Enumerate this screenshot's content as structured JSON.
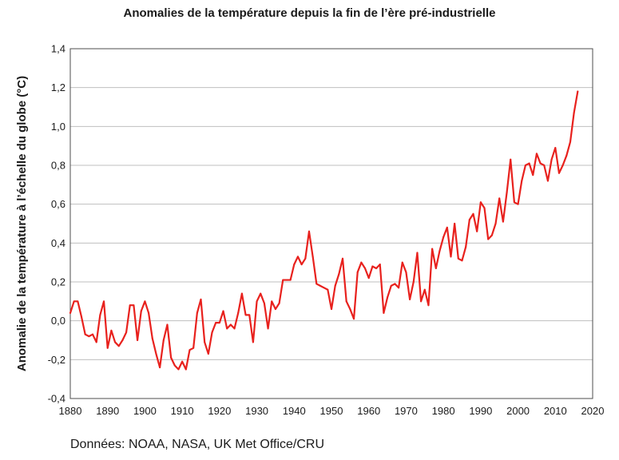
{
  "chart_data": {
    "type": "line",
    "title": "Anomalies de la température depuis la fin de l’ère pré-industrielle",
    "xlabel": "",
    "ylabel": "Anomalie de la température à l’échelle du globe (°C)",
    "xlim": [
      1880,
      2020
    ],
    "ylim": [
      -0.4,
      1.4
    ],
    "xticks": [
      1880,
      1890,
      1900,
      1910,
      1920,
      1930,
      1940,
      1950,
      1960,
      1970,
      1980,
      1990,
      2000,
      2010,
      2020
    ],
    "yticks": [
      -0.4,
      -0.2,
      0.0,
      0.2,
      0.4,
      0.6,
      0.8,
      1.0,
      1.2,
      1.4
    ],
    "xtick_labels": [
      "1880",
      "1890",
      "1900",
      "1910",
      "1920",
      "1930",
      "1940",
      "1950",
      "1960",
      "1970",
      "1980",
      "1990",
      "2000",
      "2010",
      "2020"
    ],
    "ytick_labels": [
      "-0,4",
      "-0,2",
      "0,0",
      "0,2",
      "0,4",
      "0,6",
      "0,8",
      "1,0",
      "1,2",
      "1,4"
    ],
    "grid": "horizontal",
    "line_color": "#e8211d",
    "series": [
      {
        "x": [
          1880,
          1881,
          1882,
          1883,
          1884,
          1885,
          1886,
          1887,
          1888,
          1889,
          1890,
          1891,
          1892,
          1893,
          1894,
          1895,
          1896,
          1897,
          1898,
          1899,
          1900,
          1901,
          1902,
          1903,
          1904,
          1905,
          1906,
          1907,
          1908,
          1909,
          1910,
          1911,
          1912,
          1913,
          1914,
          1915,
          1916,
          1917,
          1918,
          1919,
          1920,
          1921,
          1922,
          1923,
          1924,
          1925,
          1926,
          1927,
          1928,
          1929,
          1930,
          1931,
          1932,
          1933,
          1934,
          1935,
          1936,
          1937,
          1938,
          1939,
          1940,
          1941,
          1942,
          1943,
          1944,
          1945,
          1946,
          1947,
          1948,
          1949,
          1950,
          1951,
          1952,
          1953,
          1954,
          1955,
          1956,
          1957,
          1958,
          1959,
          1960,
          1961,
          1962,
          1963,
          1964,
          1965,
          1966,
          1967,
          1968,
          1969,
          1970,
          1971,
          1972,
          1973,
          1974,
          1975,
          1976,
          1977,
          1978,
          1979,
          1980,
          1981,
          1982,
          1983,
          1984,
          1985,
          1986,
          1987,
          1988,
          1989,
          1990,
          1991,
          1992,
          1993,
          1994,
          1995,
          1996,
          1997,
          1998,
          1999,
          2000,
          2001,
          2002,
          2003,
          2004,
          2005,
          2006,
          2007,
          2008,
          2009,
          2010,
          2011,
          2012,
          2013,
          2014,
          2015,
          2016
        ],
        "values": [
          0.04,
          0.1,
          0.1,
          0.02,
          -0.07,
          -0.08,
          -0.07,
          -0.11,
          0.03,
          0.1,
          -0.14,
          -0.05,
          -0.11,
          -0.13,
          -0.1,
          -0.06,
          0.08,
          0.08,
          -0.1,
          0.05,
          0.1,
          0.04,
          -0.09,
          -0.17,
          -0.24,
          -0.1,
          -0.02,
          -0.19,
          -0.23,
          -0.25,
          -0.21,
          -0.25,
          -0.15,
          -0.14,
          0.04,
          0.11,
          -0.11,
          -0.17,
          -0.06,
          -0.01,
          -0.01,
          0.05,
          -0.04,
          -0.02,
          -0.04,
          0.04,
          0.14,
          0.03,
          0.03,
          -0.11,
          0.1,
          0.14,
          0.09,
          -0.04,
          0.1,
          0.06,
          0.09,
          0.21,
          0.21,
          0.21,
          0.29,
          0.33,
          0.29,
          0.32,
          0.46,
          0.33,
          0.19,
          0.18,
          0.17,
          0.16,
          0.06,
          0.18,
          0.24,
          0.32,
          0.1,
          0.06,
          0.01,
          0.25,
          0.3,
          0.27,
          0.22,
          0.28,
          0.27,
          0.29,
          0.04,
          0.12,
          0.18,
          0.19,
          0.17,
          0.3,
          0.25,
          0.11,
          0.2,
          0.35,
          0.1,
          0.16,
          0.08,
          0.37,
          0.27,
          0.36,
          0.43,
          0.48,
          0.33,
          0.5,
          0.32,
          0.31,
          0.38,
          0.52,
          0.55,
          0.46,
          0.61,
          0.58,
          0.42,
          0.44,
          0.5,
          0.63,
          0.51,
          0.66,
          0.83,
          0.61,
          0.6,
          0.72,
          0.8,
          0.81,
          0.75,
          0.86,
          0.81,
          0.8,
          0.72,
          0.83,
          0.89,
          0.76,
          0.8,
          0.85,
          0.92,
          1.07,
          1.18
        ]
      }
    ]
  },
  "source_note": "Données: NOAA, NASA, UK Met Office/CRU"
}
